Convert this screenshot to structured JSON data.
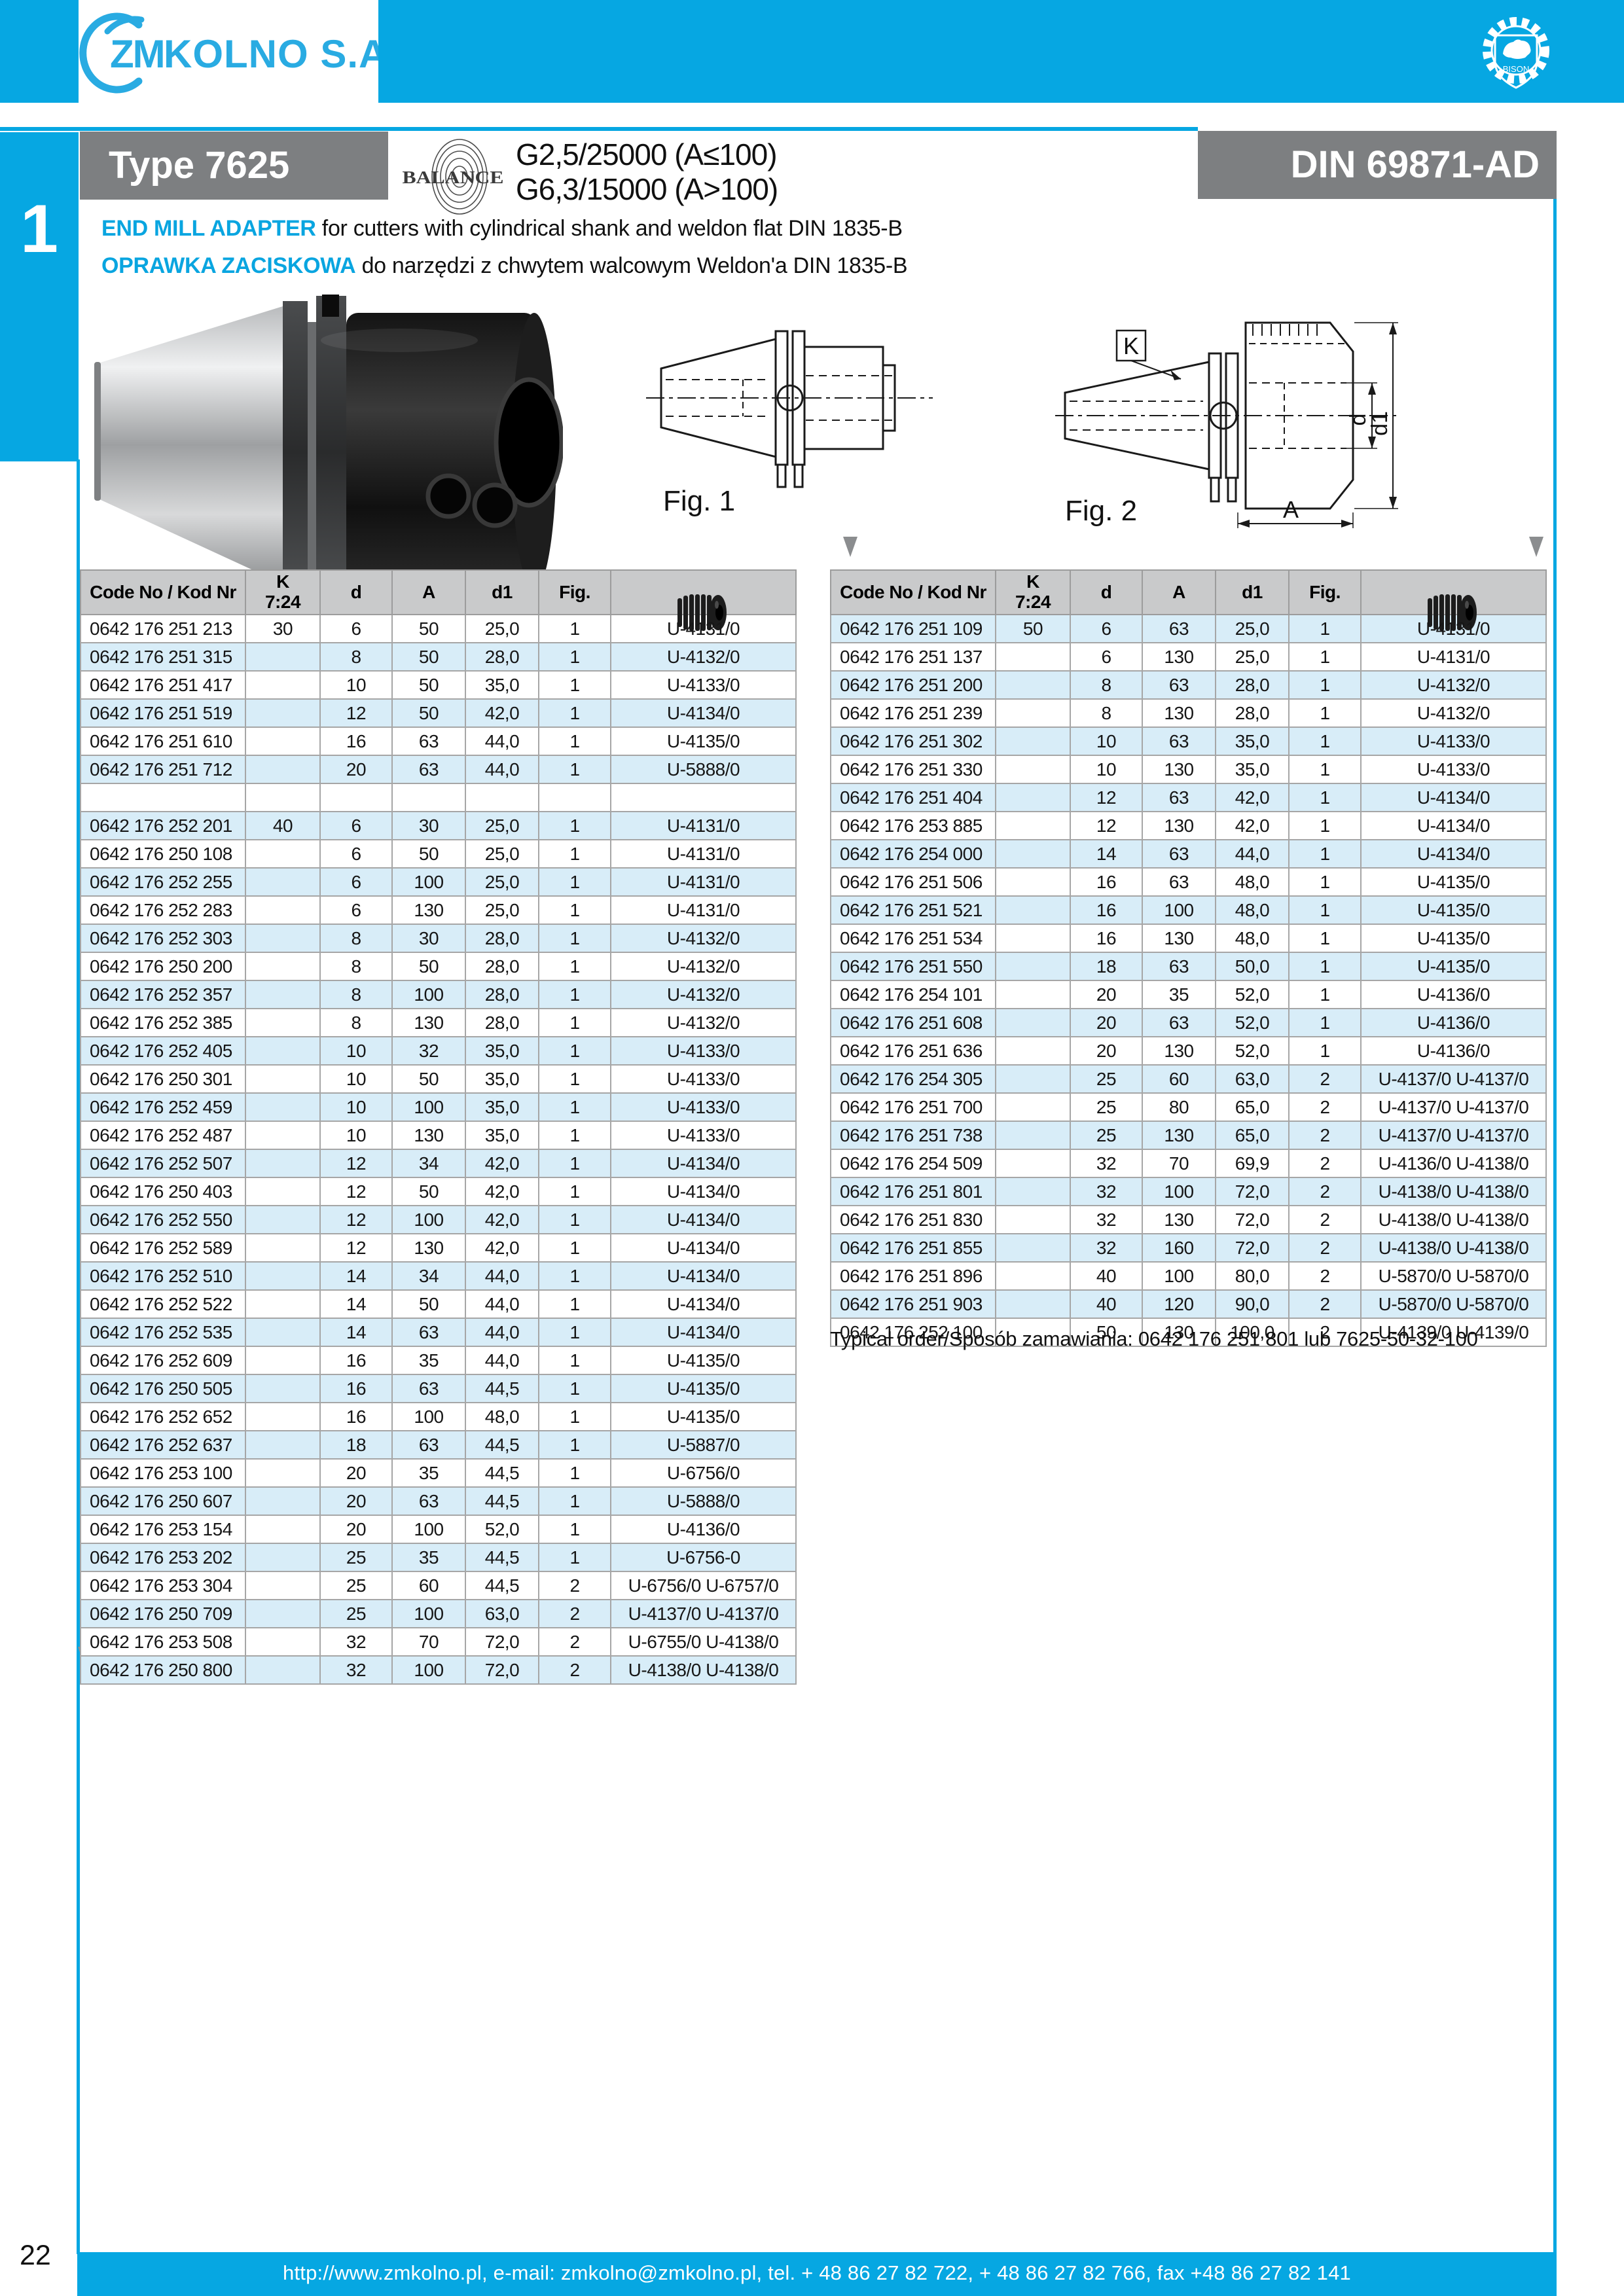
{
  "brand": {
    "logo_zm": "ZM",
    "logo_rest": "KOLNO S.A.",
    "bison_label": "BISON",
    "accent_color": "#06a7e2",
    "logo_color": "#29abe2"
  },
  "sidebar": {
    "tab_number": "1"
  },
  "title_bar": {
    "type_label": "Type 7625",
    "din_label": "DIN 69871-AD",
    "balance_label": "BALANCE",
    "balance_line1": "G2,5/25000 (A≤100)",
    "balance_line2": "G6,3/15000 (A>100)"
  },
  "description": {
    "en_bold": "END MILL ADAPTER",
    "en_rest": " for cutters with cylindrical shank and weldon flat DIN 1835-B",
    "pl_bold": "OPRAWKA ZACISKOWA",
    "pl_rest": " do narzędzi z chwytem walcowym Weldon'a DIN 1835-B"
  },
  "figures": {
    "fig1_label": "Fig. 1",
    "fig2_label": "Fig. 2",
    "k_label": "K",
    "dim_d": "d",
    "dim_d1": "d1",
    "dim_a": "A"
  },
  "tables": {
    "columns": [
      "Code No / Kod Nr",
      "K\n7:24",
      "d",
      "A",
      "d1",
      "Fig.",
      ""
    ],
    "screw_icon": "grub-screw-icon",
    "left_rows": [
      {
        "code": "0642 176 251 213",
        "k": "30",
        "d": "6",
        "a": "50",
        "d1": "25,0",
        "fig": "1",
        "u": "U-4131/0"
      },
      {
        "code": "0642 176 251 315",
        "k": "",
        "d": "8",
        "a": "50",
        "d1": "28,0",
        "fig": "1",
        "u": "U-4132/0"
      },
      {
        "code": "0642 176 251 417",
        "k": "",
        "d": "10",
        "a": "50",
        "d1": "35,0",
        "fig": "1",
        "u": "U-4133/0"
      },
      {
        "code": "0642 176 251 519",
        "k": "",
        "d": "12",
        "a": "50",
        "d1": "42,0",
        "fig": "1",
        "u": "U-4134/0"
      },
      {
        "code": "0642 176 251 610",
        "k": "",
        "d": "16",
        "a": "63",
        "d1": "44,0",
        "fig": "1",
        "u": "U-4135/0"
      },
      {
        "code": "0642 176 251 712",
        "k": "",
        "d": "20",
        "a": "63",
        "d1": "44,0",
        "fig": "1",
        "u": "U-5888/0"
      },
      {
        "code": "",
        "k": "",
        "d": "",
        "a": "",
        "d1": "",
        "fig": "",
        "u": ""
      },
      {
        "code": "0642 176 252 201",
        "k": "40",
        "d": "6",
        "a": "30",
        "d1": "25,0",
        "fig": "1",
        "u": "U-4131/0"
      },
      {
        "code": "0642 176 250 108",
        "k": "",
        "d": "6",
        "a": "50",
        "d1": "25,0",
        "fig": "1",
        "u": "U-4131/0"
      },
      {
        "code": "0642 176 252 255",
        "k": "",
        "d": "6",
        "a": "100",
        "d1": "25,0",
        "fig": "1",
        "u": "U-4131/0"
      },
      {
        "code": "0642 176 252 283",
        "k": "",
        "d": "6",
        "a": "130",
        "d1": "25,0",
        "fig": "1",
        "u": "U-4131/0"
      },
      {
        "code": "0642 176 252 303",
        "k": "",
        "d": "8",
        "a": "30",
        "d1": "28,0",
        "fig": "1",
        "u": "U-4132/0"
      },
      {
        "code": "0642 176 250 200",
        "k": "",
        "d": "8",
        "a": "50",
        "d1": "28,0",
        "fig": "1",
        "u": "U-4132/0"
      },
      {
        "code": "0642 176 252 357",
        "k": "",
        "d": "8",
        "a": "100",
        "d1": "28,0",
        "fig": "1",
        "u": "U-4132/0"
      },
      {
        "code": "0642 176 252 385",
        "k": "",
        "d": "8",
        "a": "130",
        "d1": "28,0",
        "fig": "1",
        "u": "U-4132/0"
      },
      {
        "code": "0642 176 252 405",
        "k": "",
        "d": "10",
        "a": "32",
        "d1": "35,0",
        "fig": "1",
        "u": "U-4133/0"
      },
      {
        "code": "0642 176 250 301",
        "k": "",
        "d": "10",
        "a": "50",
        "d1": "35,0",
        "fig": "1",
        "u": "U-4133/0"
      },
      {
        "code": "0642 176 252 459",
        "k": "",
        "d": "10",
        "a": "100",
        "d1": "35,0",
        "fig": "1",
        "u": "U-4133/0"
      },
      {
        "code": "0642 176 252 487",
        "k": "",
        "d": "10",
        "a": "130",
        "d1": "35,0",
        "fig": "1",
        "u": "U-4133/0"
      },
      {
        "code": "0642 176 252 507",
        "k": "",
        "d": "12",
        "a": "34",
        "d1": "42,0",
        "fig": "1",
        "u": "U-4134/0"
      },
      {
        "code": "0642 176 250 403",
        "k": "",
        "d": "12",
        "a": "50",
        "d1": "42,0",
        "fig": "1",
        "u": "U-4134/0"
      },
      {
        "code": "0642 176 252 550",
        "k": "",
        "d": "12",
        "a": "100",
        "d1": "42,0",
        "fig": "1",
        "u": "U-4134/0"
      },
      {
        "code": "0642 176 252 589",
        "k": "",
        "d": "12",
        "a": "130",
        "d1": "42,0",
        "fig": "1",
        "u": "U-4134/0"
      },
      {
        "code": "0642 176 252 510",
        "k": "",
        "d": "14",
        "a": "34",
        "d1": "44,0",
        "fig": "1",
        "u": "U-4134/0"
      },
      {
        "code": "0642 176 252 522",
        "k": "",
        "d": "14",
        "a": "50",
        "d1": "44,0",
        "fig": "1",
        "u": "U-4134/0"
      },
      {
        "code": "0642 176 252 535",
        "k": "",
        "d": "14",
        "a": "63",
        "d1": "44,0",
        "fig": "1",
        "u": "U-4134/0"
      },
      {
        "code": "0642 176 252 609",
        "k": "",
        "d": "16",
        "a": "35",
        "d1": "44,0",
        "fig": "1",
        "u": "U-4135/0"
      },
      {
        "code": "0642 176 250 505",
        "k": "",
        "d": "16",
        "a": "63",
        "d1": "44,5",
        "fig": "1",
        "u": "U-4135/0"
      },
      {
        "code": "0642 176 252 652",
        "k": "",
        "d": "16",
        "a": "100",
        "d1": "48,0",
        "fig": "1",
        "u": "U-4135/0"
      },
      {
        "code": "0642 176 252 637",
        "k": "",
        "d": "18",
        "a": "63",
        "d1": "44,5",
        "fig": "1",
        "u": "U-5887/0"
      },
      {
        "code": "0642 176 253 100",
        "k": "",
        "d": "20",
        "a": "35",
        "d1": "44,5",
        "fig": "1",
        "u": "U-6756/0"
      },
      {
        "code": "0642 176 250 607",
        "k": "",
        "d": "20",
        "a": "63",
        "d1": "44,5",
        "fig": "1",
        "u": "U-5888/0"
      },
      {
        "code": "0642 176 253 154",
        "k": "",
        "d": "20",
        "a": "100",
        "d1": "52,0",
        "fig": "1",
        "u": "U-4136/0"
      },
      {
        "code": "0642 176 253 202",
        "k": "",
        "d": "25",
        "a": "35",
        "d1": "44,5",
        "fig": "1",
        "u": "U-6756-0"
      },
      {
        "code": "0642 176 253 304",
        "k": "",
        "d": "25",
        "a": "60",
        "d1": "44,5",
        "fig": "2",
        "u": "U-6756/0  U-6757/0"
      },
      {
        "code": "0642 176 250 709",
        "k": "",
        "d": "25",
        "a": "100",
        "d1": "63,0",
        "fig": "2",
        "u": "U-4137/0  U-4137/0"
      },
      {
        "code": "0642 176 253 508",
        "k": "",
        "d": "32",
        "a": "70",
        "d1": "72,0",
        "fig": "2",
        "u": "U-6755/0  U-4138/0"
      },
      {
        "code": "0642 176 250 800",
        "k": "",
        "d": "32",
        "a": "100",
        "d1": "72,0",
        "fig": "2",
        "u": "U-4138/0  U-4138/0"
      }
    ],
    "right_rows": [
      {
        "code": "0642 176 251 109",
        "k": "50",
        "d": "6",
        "a": "63",
        "d1": "25,0",
        "fig": "1",
        "u": "U-4131/0"
      },
      {
        "code": "0642 176 251 137",
        "k": "",
        "d": "6",
        "a": "130",
        "d1": "25,0",
        "fig": "1",
        "u": "U-4131/0"
      },
      {
        "code": "0642 176 251 200",
        "k": "",
        "d": "8",
        "a": "63",
        "d1": "28,0",
        "fig": "1",
        "u": "U-4132/0"
      },
      {
        "code": "0642 176 251 239",
        "k": "",
        "d": "8",
        "a": "130",
        "d1": "28,0",
        "fig": "1",
        "u": "U-4132/0"
      },
      {
        "code": "0642 176 251 302",
        "k": "",
        "d": "10",
        "a": "63",
        "d1": "35,0",
        "fig": "1",
        "u": "U-4133/0"
      },
      {
        "code": "0642 176 251 330",
        "k": "",
        "d": "10",
        "a": "130",
        "d1": "35,0",
        "fig": "1",
        "u": "U-4133/0"
      },
      {
        "code": "0642 176 251 404",
        "k": "",
        "d": "12",
        "a": "63",
        "d1": "42,0",
        "fig": "1",
        "u": "U-4134/0"
      },
      {
        "code": "0642 176 253 885",
        "k": "",
        "d": "12",
        "a": "130",
        "d1": "42,0",
        "fig": "1",
        "u": "U-4134/0"
      },
      {
        "code": "0642 176 254 000",
        "k": "",
        "d": "14",
        "a": "63",
        "d1": "44,0",
        "fig": "1",
        "u": "U-4134/0"
      },
      {
        "code": "0642 176 251 506",
        "k": "",
        "d": "16",
        "a": "63",
        "d1": "48,0",
        "fig": "1",
        "u": "U-4135/0"
      },
      {
        "code": "0642 176 251 521",
        "k": "",
        "d": "16",
        "a": "100",
        "d1": "48,0",
        "fig": "1",
        "u": "U-4135/0"
      },
      {
        "code": "0642 176 251 534",
        "k": "",
        "d": "16",
        "a": "130",
        "d1": "48,0",
        "fig": "1",
        "u": "U-4135/0"
      },
      {
        "code": "0642 176 251 550",
        "k": "",
        "d": "18",
        "a": "63",
        "d1": "50,0",
        "fig": "1",
        "u": "U-4135/0"
      },
      {
        "code": "0642 176 254 101",
        "k": "",
        "d": "20",
        "a": "35",
        "d1": "52,0",
        "fig": "1",
        "u": "U-4136/0"
      },
      {
        "code": "0642 176 251 608",
        "k": "",
        "d": "20",
        "a": "63",
        "d1": "52,0",
        "fig": "1",
        "u": "U-4136/0"
      },
      {
        "code": "0642 176 251 636",
        "k": "",
        "d": "20",
        "a": "130",
        "d1": "52,0",
        "fig": "1",
        "u": "U-4136/0"
      },
      {
        "code": "0642 176 254 305",
        "k": "",
        "d": "25",
        "a": "60",
        "d1": "63,0",
        "fig": "2",
        "u": "U-4137/0  U-4137/0"
      },
      {
        "code": "0642 176 251 700",
        "k": "",
        "d": "25",
        "a": "80",
        "d1": "65,0",
        "fig": "2",
        "u": "U-4137/0  U-4137/0"
      },
      {
        "code": "0642 176 251 738",
        "k": "",
        "d": "25",
        "a": "130",
        "d1": "65,0",
        "fig": "2",
        "u": "U-4137/0  U-4137/0"
      },
      {
        "code": "0642 176 254 509",
        "k": "",
        "d": "32",
        "a": "70",
        "d1": "69,9",
        "fig": "2",
        "u": "U-4136/0  U-4138/0"
      },
      {
        "code": "0642 176 251 801",
        "k": "",
        "d": "32",
        "a": "100",
        "d1": "72,0",
        "fig": "2",
        "u": "U-4138/0  U-4138/0"
      },
      {
        "code": "0642 176 251 830",
        "k": "",
        "d": "32",
        "a": "130",
        "d1": "72,0",
        "fig": "2",
        "u": "U-4138/0  U-4138/0"
      },
      {
        "code": "0642 176 251 855",
        "k": "",
        "d": "32",
        "a": "160",
        "d1": "72,0",
        "fig": "2",
        "u": "U-4138/0  U-4138/0"
      },
      {
        "code": "0642 176 251 896",
        "k": "",
        "d": "40",
        "a": "100",
        "d1": "80,0",
        "fig": "2",
        "u": "U-5870/0  U-5870/0"
      },
      {
        "code": "0642 176 251 903",
        "k": "",
        "d": "40",
        "a": "120",
        "d1": "90,0",
        "fig": "2",
        "u": "U-5870/0  U-5870/0"
      },
      {
        "code": "0642 176 252 100",
        "k": "",
        "d": "50",
        "a": "130",
        "d1": "100,0",
        "fig": "2",
        "u": "U-4139/0  U-4139/0"
      }
    ]
  },
  "typical_order": "Typical order/Sposób zamawiania: 0642 176 251 801 lub 7625-50-32-100",
  "footer": {
    "page_number": "22",
    "contact": "http://www.zmkolno.pl, e-mail: zmkolno@zmkolno.pl, tel. + 48 86 27 82 722, + 48 86 27 82 766, fax +48 86 27 82 141"
  }
}
